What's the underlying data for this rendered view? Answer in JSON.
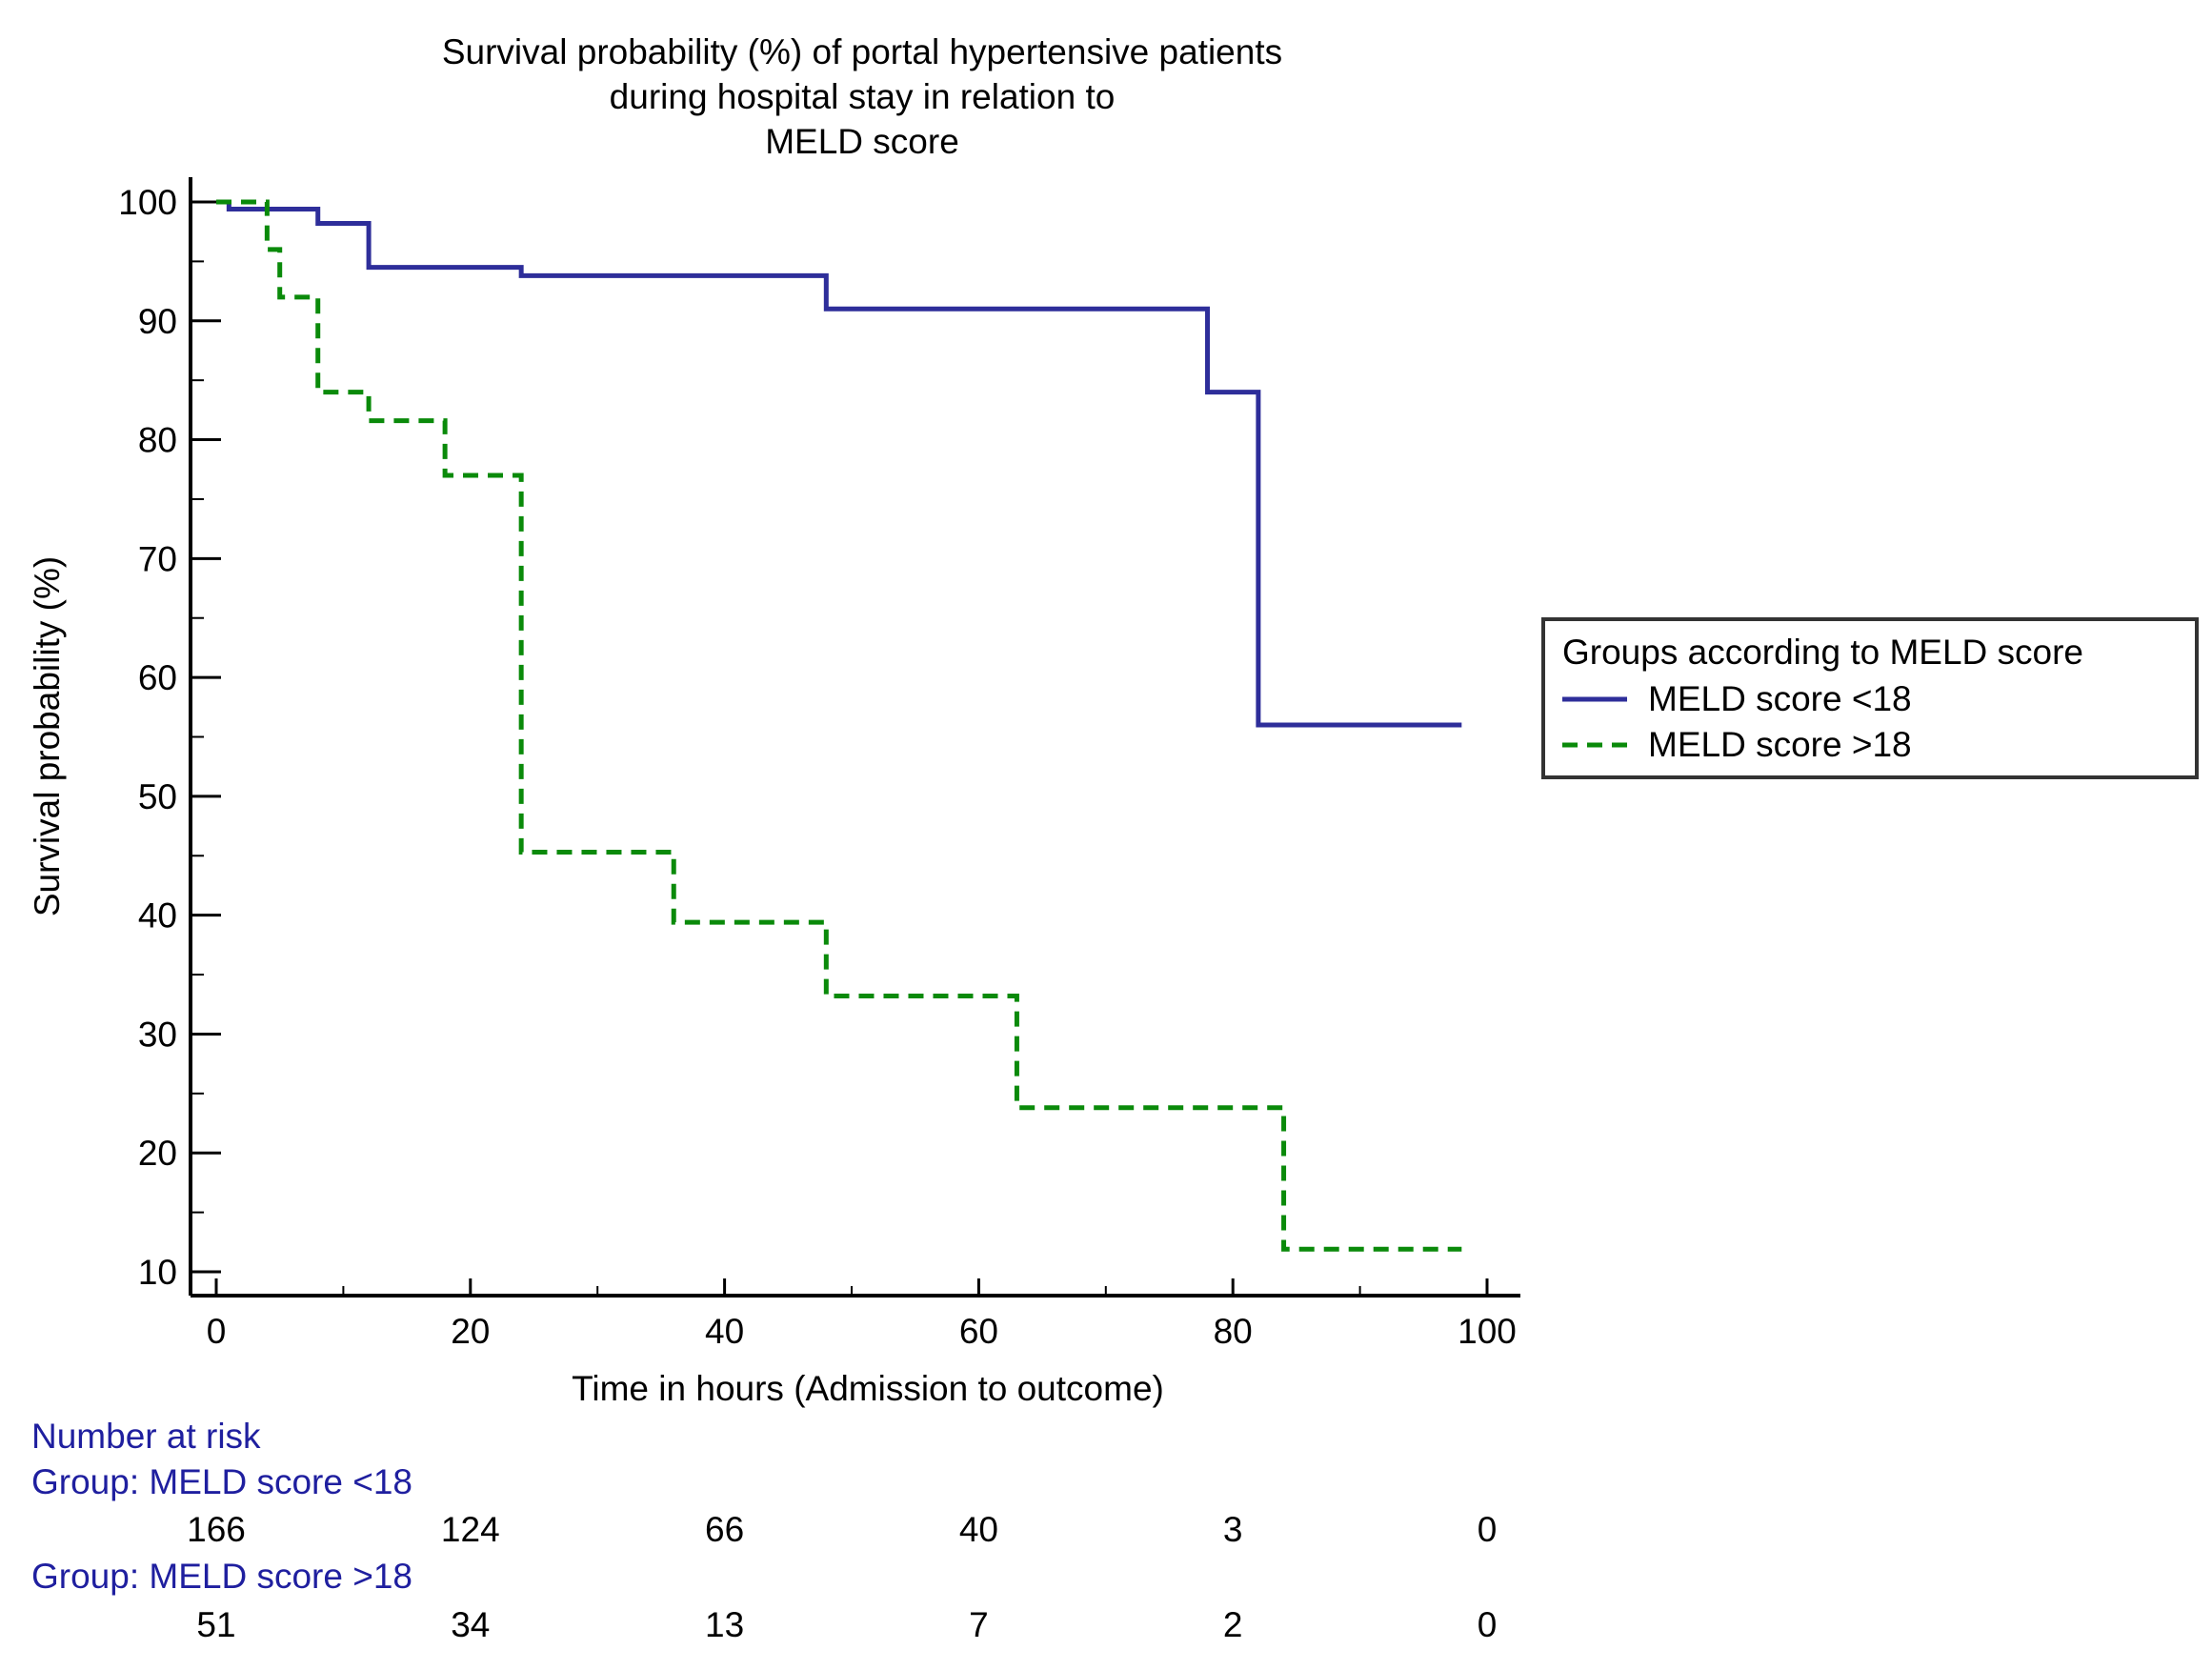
{
  "chart_data": {
    "type": "line",
    "subtype": "kaplan-meier step",
    "title": [
      "Survival probability (%) of portal hypertensive patients",
      "during hospital stay in relation to",
      "MELD score"
    ],
    "xlabel": "Time in hours (Admission to outcome)",
    "ylabel": "Survival probability (%)",
    "xlim": [
      0,
      100
    ],
    "ylim": [
      10,
      100
    ],
    "xticks": [
      0,
      20,
      40,
      60,
      80,
      100
    ],
    "yticks": [
      10,
      20,
      30,
      40,
      50,
      60,
      70,
      80,
      90,
      100
    ],
    "grid": false,
    "legend": {
      "title": "Groups according to MELD score",
      "placement": "right"
    },
    "series": [
      {
        "name": "MELD score <18",
        "color": "#2e2e9a",
        "style": "solid",
        "steps": [
          [
            0,
            100
          ],
          [
            1,
            99.4
          ],
          [
            8,
            98.2
          ],
          [
            12,
            94.5
          ],
          [
            24,
            93.8
          ],
          [
            48,
            91
          ],
          [
            78,
            84
          ],
          [
            82,
            56
          ],
          [
            98,
            56
          ]
        ]
      },
      {
        "name": "MELD score >18",
        "color": "#0a8a0a",
        "style": "dashed",
        "steps": [
          [
            0,
            100
          ],
          [
            4,
            96
          ],
          [
            5,
            92
          ],
          [
            8,
            84
          ],
          [
            12,
            81.6
          ],
          [
            18,
            77
          ],
          [
            24,
            45.3
          ],
          [
            36,
            39.4
          ],
          [
            48,
            33.2
          ],
          [
            63,
            23.8
          ],
          [
            84,
            11.9
          ],
          [
            98,
            11.9
          ]
        ]
      }
    ],
    "risk_table": {
      "header": "Number at risk",
      "groups": [
        {
          "label": "Group: MELD score <18",
          "values": [
            166,
            124,
            66,
            40,
            3,
            0
          ]
        },
        {
          "label": "Group: MELD score >18",
          "values": [
            51,
            34,
            13,
            7,
            2,
            0
          ]
        }
      ]
    }
  }
}
